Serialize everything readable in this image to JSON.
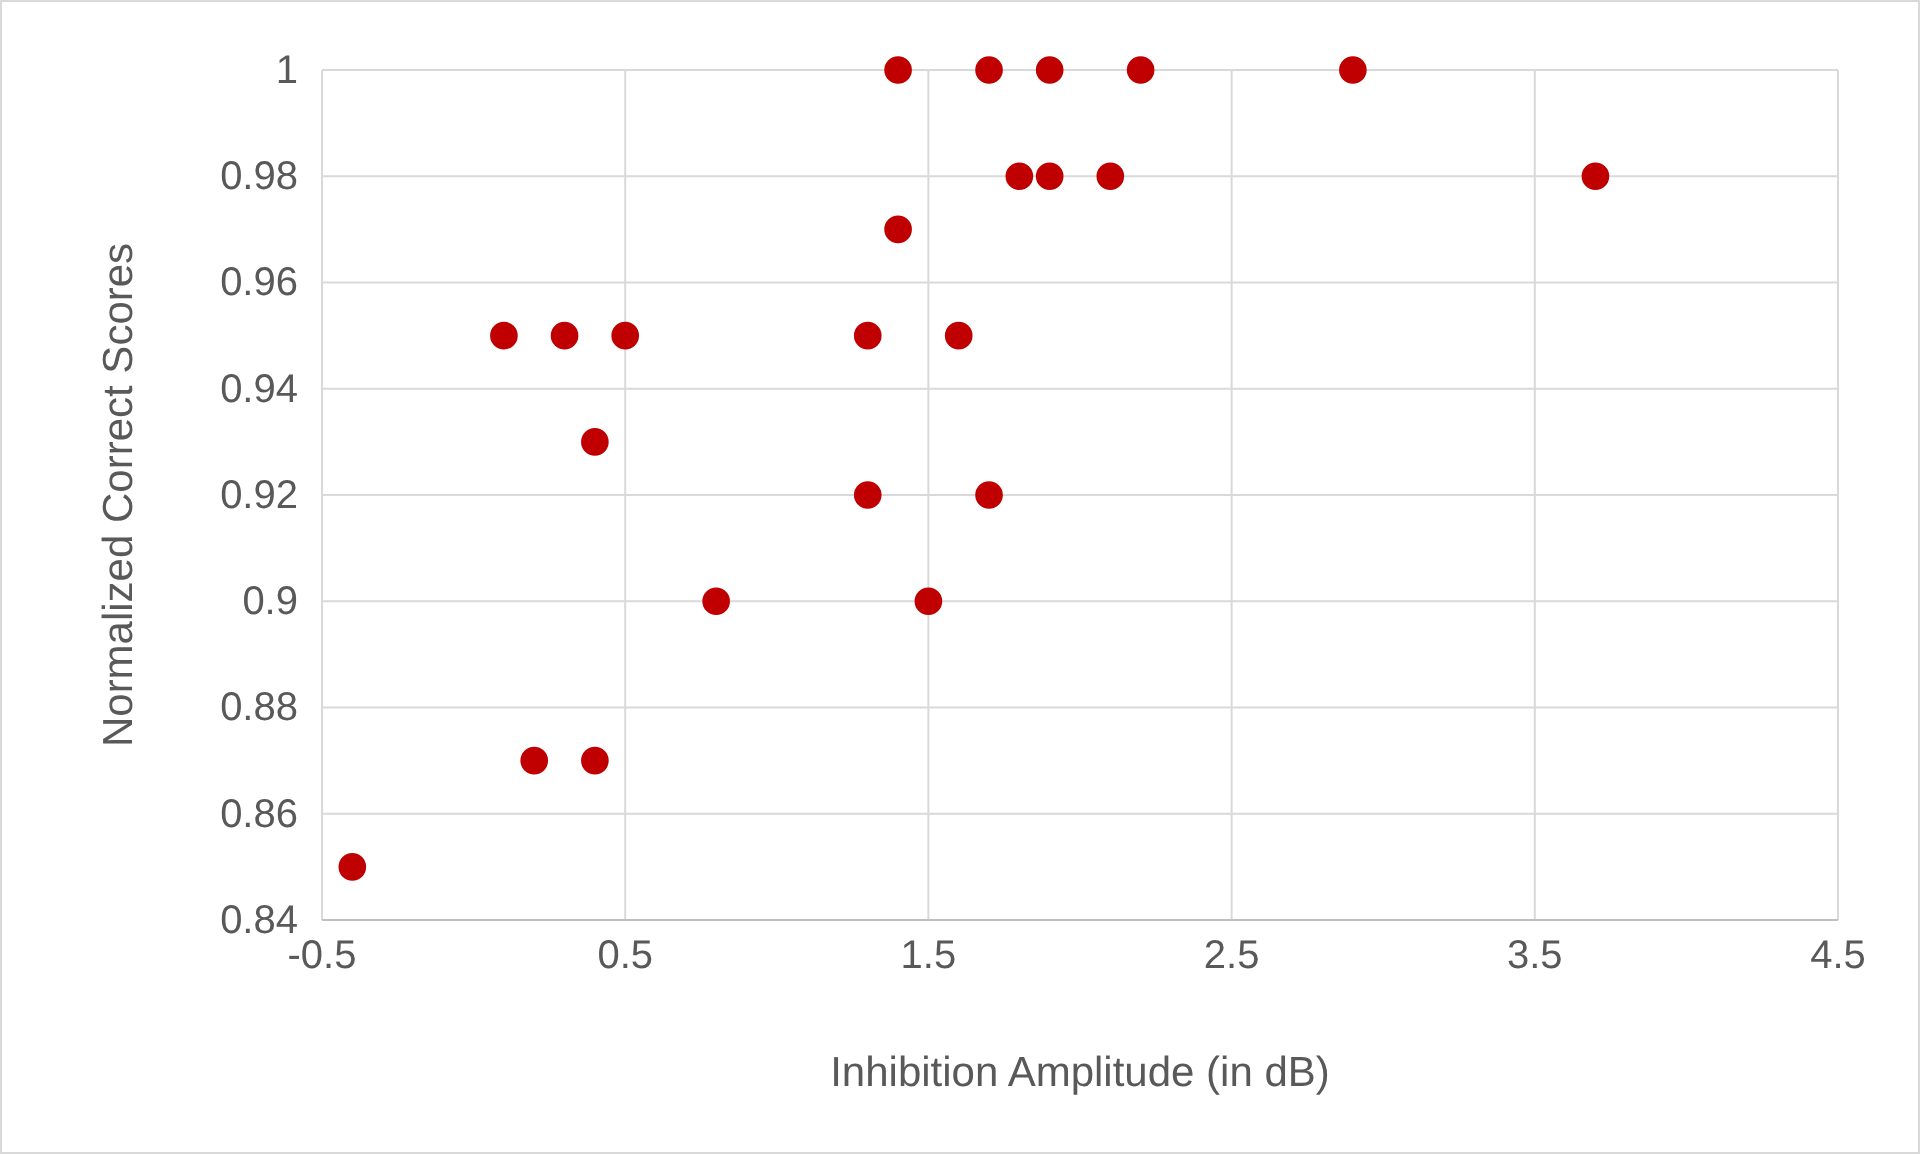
{
  "chart_data": {
    "type": "scatter",
    "xlabel": "Inhibition Amplitude (in dB)",
    "ylabel": "Normalized Correct Scores",
    "x": [
      -0.4,
      1.4,
      1.7,
      1.9,
      2.2,
      2.9,
      1.8,
      1.9,
      2.1,
      3.7,
      1.4,
      0.1,
      0.3,
      0.5,
      1.3,
      1.6,
      0.4,
      1.3,
      1.7,
      0.8,
      1.5,
      0.2,
      0.4
    ],
    "series": [
      {
        "color": "#c00000",
        "values": [
          0.85,
          1,
          1,
          1,
          1,
          1,
          0.98,
          0.98,
          0.98,
          0.98,
          0.97,
          0.95,
          0.95,
          0.95,
          0.95,
          0.95,
          0.93,
          0.92,
          0.92,
          0.9,
          0.9,
          0.87,
          0.87
        ]
      }
    ],
    "xlim": [
      -0.5,
      4.5
    ],
    "xticks": [
      -0.5,
      0.5,
      1.5,
      2.5,
      3.5,
      4.5
    ],
    "ylim": [
      0.84,
      1
    ],
    "yticks": [
      0.84,
      0.86,
      0.88,
      0.9,
      0.92,
      0.94,
      0.96,
      0.98,
      1
    ],
    "grid": true,
    "marker": "circle"
  }
}
